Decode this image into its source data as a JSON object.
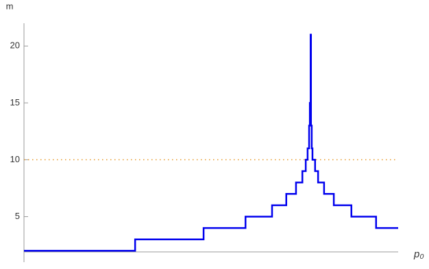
{
  "chart_data": {
    "type": "line",
    "y_label": "m",
    "x_label": "p₀",
    "xlim": [
      0,
      1
    ],
    "ylim": [
      1.9,
      22
    ],
    "yticks": [
      5,
      10,
      15,
      20
    ],
    "series": [
      {
        "color": "#0000ee",
        "x": [
          0,
          0.297,
          0.297,
          0.48,
          0.48,
          0.592,
          0.592,
          0.663,
          0.663,
          0.701,
          0.701,
          0.727,
          0.727,
          0.744,
          0.744,
          0.753,
          0.753,
          0.758,
          0.758,
          0.762,
          0.762,
          0.764,
          0.764,
          0.766,
          0.766,
          0.767,
          0.767,
          0.769,
          0.769,
          0.771,
          0.771,
          0.778,
          0.778,
          0.786,
          0.786,
          0.802,
          0.802,
          0.828,
          0.828,
          0.875,
          0.875,
          0.941,
          0.941,
          1
        ],
        "values": [
          2,
          2,
          3,
          3,
          4,
          4,
          5,
          5,
          6,
          6,
          7,
          7,
          8,
          8,
          9,
          9,
          10,
          10,
          11,
          11,
          13,
          13,
          15,
          15,
          21,
          21,
          13,
          13,
          11,
          11,
          10,
          10,
          9,
          9,
          8,
          8,
          7,
          7,
          6,
          6,
          5,
          5,
          4,
          4
        ]
      },
      {
        "color": "#e69a2c",
        "dotted": true,
        "x": [
          0,
          1
        ],
        "values": [
          10,
          10
        ]
      }
    ]
  }
}
